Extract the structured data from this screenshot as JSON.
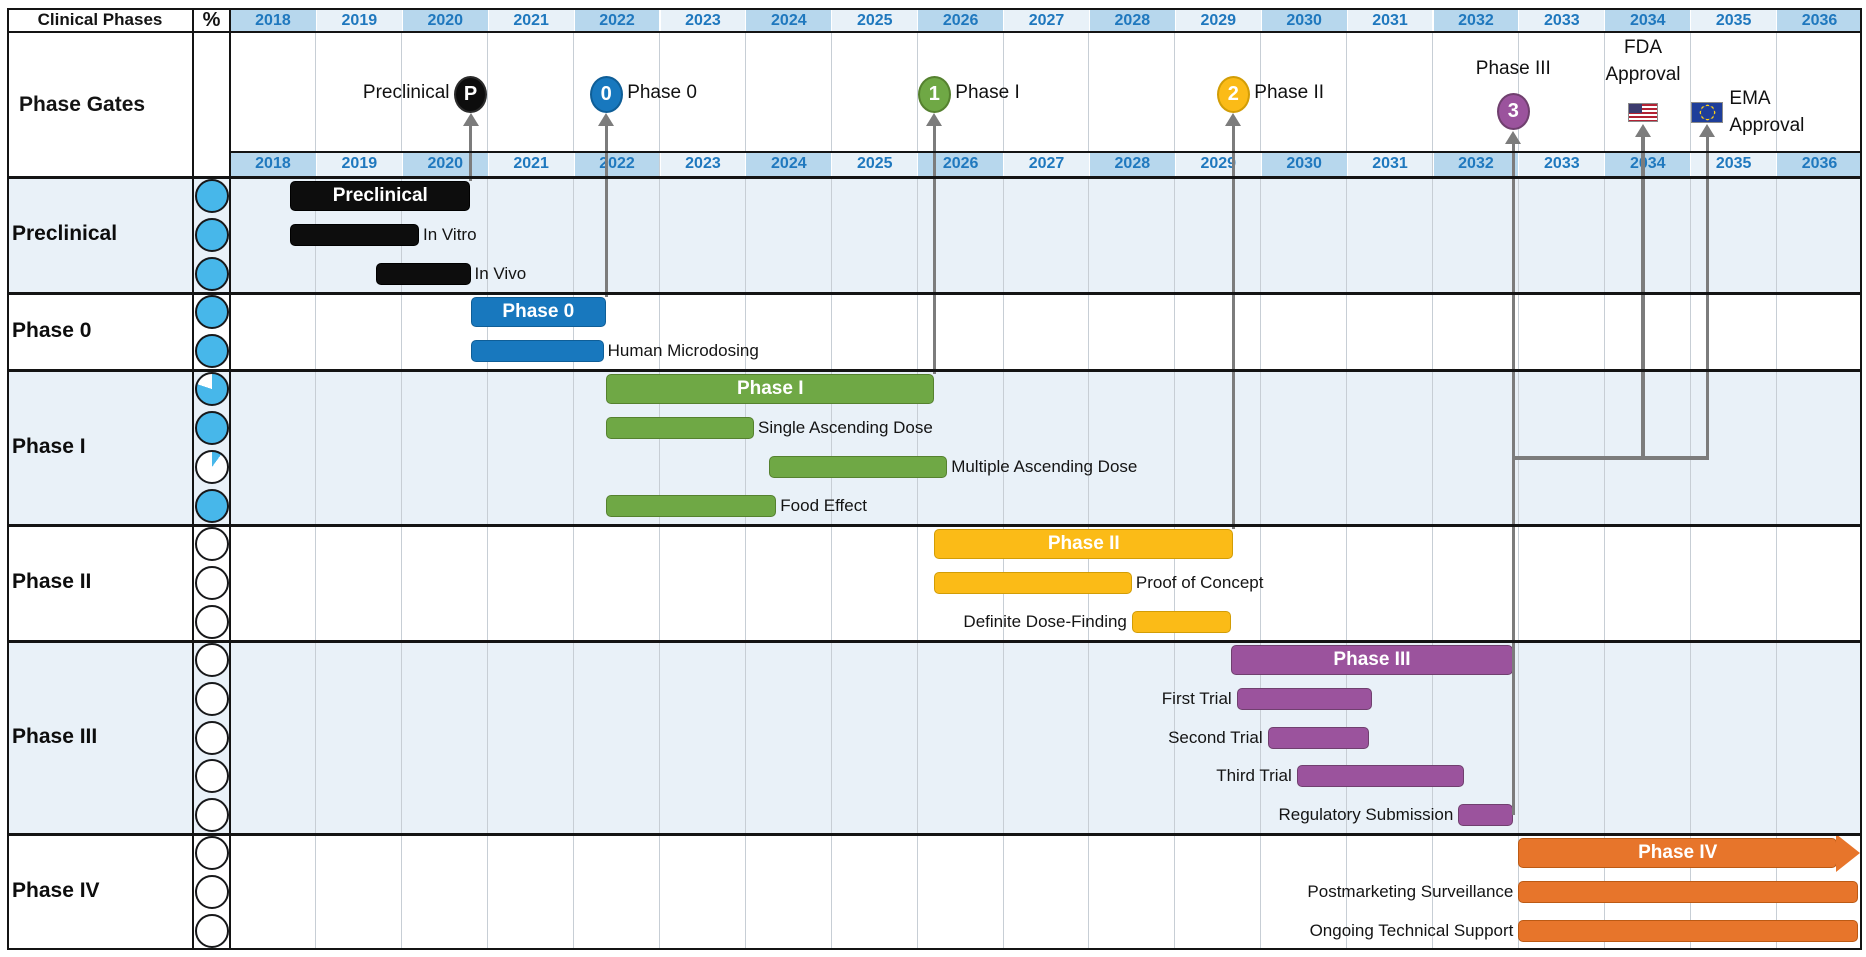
{
  "header": {
    "clinical_phases_label": "Clinical Phases",
    "percent_label": "%",
    "phase_gates_label": "Phase Gates"
  },
  "chart_data": {
    "type": "bar",
    "subtype": "gantt",
    "title": "Clinical Phases Gantt Timeline",
    "grid": true,
    "legend_position": "none",
    "timeline": {
      "start_year": 2018,
      "end_year": 2037,
      "tick_years": [
        "2018",
        "2019",
        "2020",
        "2021",
        "2022",
        "2023",
        "2024",
        "2025",
        "2026",
        "2027",
        "2028",
        "2029",
        "2030",
        "2031",
        "2032",
        "2033",
        "2034",
        "2035",
        "2036"
      ]
    },
    "colors": {
      "progress_fill": "#47b7ea",
      "year_header_dark": "#b7d7ed",
      "year_header_light": "#e8f1f8",
      "year_text": "#1f78be",
      "connector": "#7c7c7c",
      "grid_line": "#c7ced5",
      "border": "#141414",
      "row_alt_bg": "#e9f1f8"
    },
    "phases": [
      {
        "name": "Preclinical",
        "fill": "#0d0d0d",
        "border": "#000000",
        "row_bg": "#e9f1f8",
        "tasks": [
          {
            "label": "Preclinical",
            "kind": "summary",
            "start": 2018.7,
            "end": 2020.8,
            "progress": 100,
            "label_pos": "center"
          },
          {
            "label": "In Vitro",
            "kind": "task",
            "start": 2018.7,
            "end": 2020.2,
            "progress": 100,
            "label_pos": "right"
          },
          {
            "label": "In Vivo",
            "kind": "task",
            "start": 2019.7,
            "end": 2020.8,
            "progress": 100,
            "label_pos": "right"
          }
        ]
      },
      {
        "name": "Phase 0",
        "fill": "#1878be",
        "border": "#0f5e97",
        "row_bg": "#ffffff",
        "tasks": [
          {
            "label": "Phase 0",
            "kind": "summary",
            "start": 2020.8,
            "end": 2022.38,
            "progress": 100,
            "label_pos": "center"
          },
          {
            "label": "Human Microdosing",
            "kind": "task",
            "start": 2020.8,
            "end": 2022.35,
            "progress": 100,
            "label_pos": "right"
          }
        ]
      },
      {
        "name": "Phase I",
        "fill": "#6fa845",
        "border": "#55812f",
        "row_bg": "#e9f1f8",
        "tasks": [
          {
            "label": "Phase I",
            "kind": "summary",
            "start": 2022.38,
            "end": 2026.2,
            "progress": 80,
            "label_pos": "center"
          },
          {
            "label": "Single Ascending Dose",
            "kind": "task",
            "start": 2022.38,
            "end": 2024.1,
            "progress": 100,
            "label_pos": "right"
          },
          {
            "label": "Multiple Ascending Dose",
            "kind": "task",
            "start": 2024.28,
            "end": 2026.35,
            "progress": 10,
            "label_pos": "right"
          },
          {
            "label": "Food Effect",
            "kind": "task",
            "start": 2022.38,
            "end": 2024.36,
            "progress": 100,
            "label_pos": "right"
          }
        ]
      },
      {
        "name": "Phase II",
        "fill": "#fbbb17",
        "border": "#d29d06",
        "row_bg": "#ffffff",
        "tasks": [
          {
            "label": "Phase II",
            "kind": "summary",
            "start": 2026.2,
            "end": 2029.68,
            "progress": 0,
            "label_pos": "center"
          },
          {
            "label": "Proof of Concept",
            "kind": "task",
            "start": 2026.2,
            "end": 2028.5,
            "progress": 0,
            "label_pos": "right"
          },
          {
            "label": "Definite Dose-Finding",
            "kind": "task",
            "start": 2028.5,
            "end": 2029.65,
            "progress": 0,
            "label_pos": "left"
          }
        ]
      },
      {
        "name": "Phase III",
        "fill": "#9b539d",
        "border": "#70406f",
        "row_bg": "#e9f1f8",
        "tasks": [
          {
            "label": "Phase III",
            "kind": "summary",
            "start": 2029.65,
            "end": 2032.94,
            "progress": 0,
            "label_pos": "center"
          },
          {
            "label": "First Trial",
            "kind": "task",
            "start": 2029.72,
            "end": 2031.3,
            "progress": 0,
            "label_pos": "left"
          },
          {
            "label": "Second Trial",
            "kind": "task",
            "start": 2030.08,
            "end": 2031.26,
            "progress": 0,
            "label_pos": "left"
          },
          {
            "label": "Third Trial",
            "kind": "task",
            "start": 2030.42,
            "end": 2032.37,
            "progress": 0,
            "label_pos": "left"
          },
          {
            "label": "Regulatory Submission",
            "kind": "task",
            "start": 2032.3,
            "end": 2032.94,
            "progress": 0,
            "label_pos": "left"
          }
        ]
      },
      {
        "name": "Phase IV",
        "fill": "#e7752b",
        "border": "#bc5a14",
        "row_bg": "#ffffff",
        "tasks": [
          {
            "label": "Phase IV",
            "kind": "summary",
            "start": 2033.0,
            "end": 2036.99,
            "progress": 0,
            "label_pos": "center",
            "arrow_end": true
          },
          {
            "label": "Postmarketing Surveillance",
            "kind": "task",
            "start": 2033.0,
            "end": 2036.95,
            "progress": 0,
            "label_pos": "left"
          },
          {
            "label": "Ongoing Technical Support",
            "kind": "task",
            "start": 2033.0,
            "end": 2036.95,
            "progress": 0,
            "label_pos": "left"
          }
        ]
      }
    ],
    "gates": [
      {
        "id": "gate-preclinical",
        "symbol": "P",
        "label": "Preclinical",
        "label_pos": "left",
        "year": 2020.8,
        "kind": "circle",
        "fill": "#0d0d0d",
        "ring": "#2b2b2b"
      },
      {
        "id": "gate-phase-0",
        "symbol": "0",
        "label": "Phase 0",
        "label_pos": "right",
        "year": 2022.38,
        "kind": "circle",
        "fill": "#1878be",
        "ring": "#0f5e97"
      },
      {
        "id": "gate-phase-1",
        "symbol": "1",
        "label": "Phase I",
        "label_pos": "right",
        "year": 2026.2,
        "kind": "circle",
        "fill": "#6fa845",
        "ring": "#55812f"
      },
      {
        "id": "gate-phase-2",
        "symbol": "2",
        "label": "Phase II",
        "label_pos": "right",
        "year": 2029.68,
        "kind": "circle",
        "fill": "#fbbb17",
        "ring": "#d29d06"
      },
      {
        "id": "gate-phase-3",
        "symbol": "3",
        "label": "Phase III",
        "label_pos": "above",
        "year": 2032.94,
        "kind": "circle",
        "fill": "#9b539d",
        "ring": "#70406f"
      },
      {
        "id": "gate-fda-approval",
        "symbol": "",
        "label": "FDA\nApproval",
        "label_pos": "above",
        "year": 2034.45,
        "kind": "flag_us"
      },
      {
        "id": "gate-ema-approval",
        "symbol": "",
        "label": "EMA\nApproval",
        "label_pos": "right",
        "year": 2035.2,
        "kind": "flag_eu"
      }
    ]
  }
}
